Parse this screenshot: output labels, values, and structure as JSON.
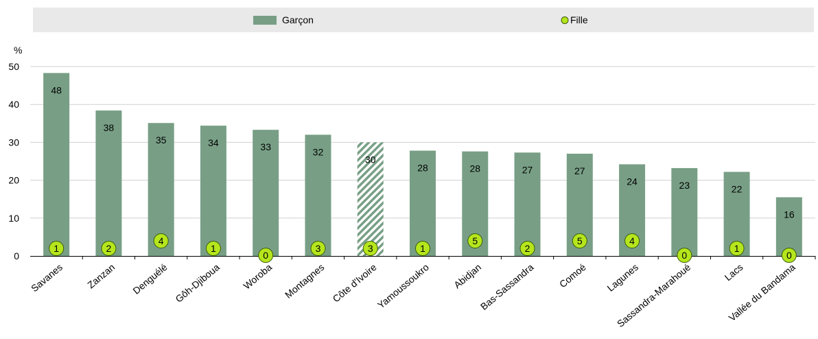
{
  "colors": {
    "bar": "#789f86",
    "bar_highlight_stripe": "#789f86",
    "dot_fill": "#b5e61d",
    "dot_stroke": "#3a5a0a",
    "legend_bg": "#e9e9e9"
  },
  "legend": {
    "series1": "Garçon",
    "series2": "Fille"
  },
  "chart_data": {
    "type": "bar",
    "ylabel": "%",
    "ylim": [
      0,
      50
    ],
    "yticks": [
      0,
      10,
      20,
      30,
      40,
      50
    ],
    "categories": [
      "Savanes",
      "Zanzan",
      "Denguélé",
      "Gôh-Djiboua",
      "Woroba",
      "Montagnes",
      "Côte d'Ivoire",
      "Yamoussoukro",
      "Abidjan",
      "Bas-Sassandra",
      "Comoé",
      "Lagunes",
      "Sassandra-Marahoué",
      "Lacs",
      "Vallée du Bandama"
    ],
    "highlight_category": "Côte d'Ivoire",
    "series": [
      {
        "name": "Garçon",
        "kind": "bar",
        "values": [
          48.3,
          38.4,
          35.1,
          34.4,
          33.3,
          32.0,
          30.0,
          27.8,
          27.6,
          27.3,
          27.0,
          24.2,
          23.2,
          22.2,
          15.5
        ],
        "labels": [
          "48",
          "38",
          "35",
          "34",
          "33",
          "32",
          "30",
          "28",
          "28",
          "27",
          "27",
          "24",
          "23",
          "22",
          "16"
        ]
      },
      {
        "name": "Fille",
        "kind": "dot",
        "values": [
          1,
          2,
          4,
          1,
          0,
          3,
          3,
          1,
          5,
          2,
          5,
          4,
          0,
          1,
          0
        ],
        "labels": [
          "1",
          "2",
          "4",
          "1",
          "0",
          "3",
          "3",
          "1",
          "5",
          "2",
          "5",
          "4",
          "0",
          "1",
          "0"
        ]
      }
    ]
  }
}
